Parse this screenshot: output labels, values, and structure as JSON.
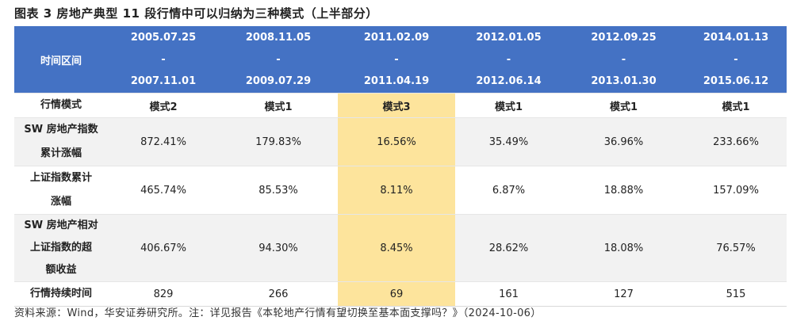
{
  "title": "图表 3  房地产典型 11 段行情中可以归纳为三种模式（上半部分）",
  "header": {
    "label": "时间区间",
    "periods": [
      {
        "start": "2005.07.25",
        "dash": "-",
        "end": "2007.11.01"
      },
      {
        "start": "2008.11.05",
        "dash": "-",
        "end": "2009.07.29"
      },
      {
        "start": "2011.02.09",
        "dash": "-",
        "end": "2011.04.19"
      },
      {
        "start": "2012.01.05",
        "dash": "-",
        "end": "2012.06.14"
      },
      {
        "start": "2012.09.25",
        "dash": "-",
        "end": "2013.01.30"
      },
      {
        "start": "2014.01.13",
        "dash": "-",
        "end": "2015.06.12"
      }
    ]
  },
  "rows": {
    "mode": {
      "label": "行情模式",
      "values": [
        "模式2",
        "模式1",
        "模式3",
        "模式1",
        "模式1",
        "模式1"
      ]
    },
    "sw": {
      "label_line1": "SW 房地产指数",
      "label_line2": "累计涨幅",
      "values": [
        "872.41%",
        "179.83%",
        "16.56%",
        "35.49%",
        "36.96%",
        "233.66%"
      ]
    },
    "sh": {
      "label_line1": "上证指数累计",
      "label_line2": "涨幅",
      "values": [
        "465.74%",
        "85.53%",
        "8.11%",
        "6.87%",
        "18.88%",
        "157.09%"
      ]
    },
    "excess": {
      "label_line1": "SW 房地产相对",
      "label_line2": "上证指数的超",
      "label_line3": "额收益",
      "values": [
        "406.67%",
        "94.30%",
        "8.45%",
        "28.62%",
        "18.08%",
        "76.57%"
      ]
    },
    "duration": {
      "label": "行情持续时间",
      "values": [
        "829",
        "266",
        "69",
        "161",
        "127",
        "515"
      ]
    }
  },
  "source": "资料来源：Wind，华安证券研究所。注：详见报告《本轮地产行情有望切换至基本面支撑吗？》（2024-10-06）",
  "colors": {
    "header_bg": "#4472c4",
    "highlight": "#fde49c",
    "alt_row": "#f2f2f2"
  }
}
